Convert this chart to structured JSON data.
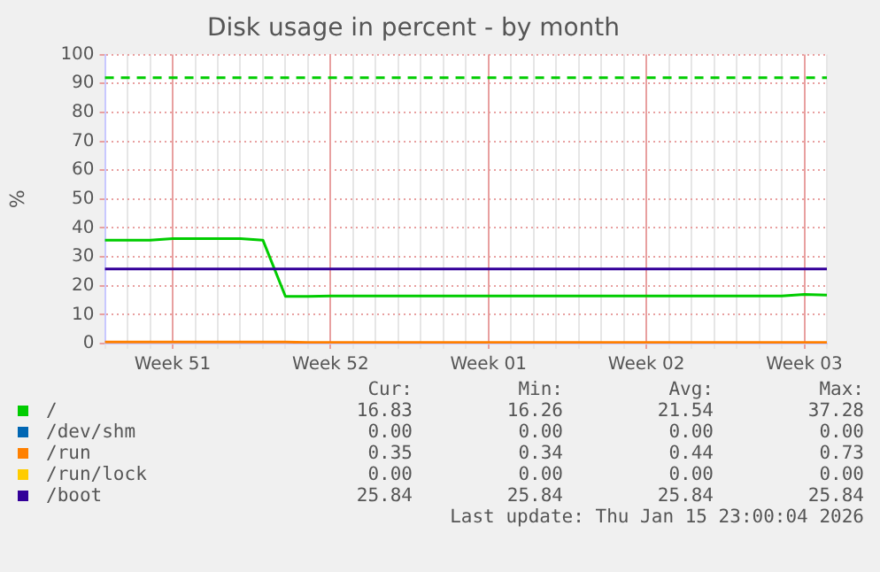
{
  "chart_data": {
    "type": "line",
    "title": "Disk usage in percent - by month",
    "ylabel": "%",
    "categories": [
      null,
      null,
      null,
      "Week 51",
      null,
      null,
      null,
      null,
      null,
      null,
      "Week 52",
      null,
      null,
      null,
      null,
      null,
      null,
      "Week 01",
      null,
      null,
      null,
      null,
      null,
      null,
      "Week 02",
      null,
      null,
      null,
      null,
      null,
      null,
      "Week 03",
      null
    ],
    "ylim": [
      0,
      100
    ],
    "yticks": [
      0,
      10,
      20,
      30,
      40,
      50,
      60,
      70,
      80,
      90,
      100
    ],
    "grid": true,
    "legend": "bottom",
    "marker": "none",
    "line_style": "solid",
    "series": [
      {
        "name": "/",
        "color": "#00cc00",
        "values": [
          35.8,
          35.8,
          35.8,
          36.3,
          36.3,
          36.3,
          36.3,
          35.8,
          16.3,
          16.3,
          16.5,
          16.5,
          16.5,
          16.5,
          16.5,
          16.5,
          16.5,
          16.5,
          16.5,
          16.5,
          16.5,
          16.5,
          16.5,
          16.5,
          16.5,
          16.5,
          16.5,
          16.5,
          16.5,
          16.5,
          16.5,
          17.0,
          16.8
        ]
      },
      {
        "name": "/dev/shm",
        "color": "#0066b3",
        "values": [
          null,
          null,
          null,
          null,
          null,
          null,
          null,
          null,
          null,
          null,
          null,
          null,
          null,
          null,
          null,
          null,
          null,
          null,
          null,
          null,
          null,
          null,
          null,
          null,
          null,
          null,
          null,
          null,
          null,
          null,
          null,
          null,
          null
        ]
      },
      {
        "name": "/run",
        "color": "#ff8000",
        "values": [
          0.5,
          0.5,
          0.5,
          0.5,
          0.5,
          0.5,
          0.5,
          0.5,
          0.5,
          0.4,
          0.4,
          0.4,
          0.4,
          0.4,
          0.4,
          0.4,
          0.4,
          0.4,
          0.4,
          0.4,
          0.4,
          0.4,
          0.4,
          0.4,
          0.4,
          0.4,
          0.4,
          0.4,
          0.4,
          0.4,
          0.4,
          0.4,
          0.4
        ]
      },
      {
        "name": "/run/lock",
        "color": "#ffcc00",
        "values": [
          null,
          null,
          null,
          null,
          null,
          null,
          null,
          null,
          null,
          null,
          null,
          null,
          null,
          null,
          null,
          null,
          null,
          null,
          null,
          null,
          null,
          null,
          null,
          null,
          null,
          null,
          null,
          null,
          null,
          null,
          null,
          null,
          null
        ]
      },
      {
        "name": "/boot",
        "color": "#330099",
        "values": [
          25.8,
          25.8,
          25.8,
          25.8,
          25.8,
          25.8,
          25.8,
          25.8,
          25.8,
          25.8,
          25.8,
          25.8,
          25.8,
          25.8,
          25.8,
          25.8,
          25.8,
          25.8,
          25.8,
          25.8,
          25.8,
          25.8,
          25.8,
          25.8,
          25.8,
          25.8,
          25.8,
          25.8,
          25.8,
          25.8,
          25.8,
          25.8,
          25.8
        ]
      }
    ],
    "ref_lines": [
      {
        "axis": "y",
        "value": 92,
        "color": "#00cc00",
        "line_style": "dashed"
      }
    ],
    "annotations": [
      "Cur:",
      "Min:",
      "Avg:",
      "Max:",
      "16.83",
      "16.26",
      "21.54",
      "37.28",
      "0.00",
      "0.00",
      "0.00",
      "0.00",
      "0.35",
      "0.34",
      "0.44",
      "0.73",
      "0.00",
      "0.00",
      "0.00",
      "0.00",
      "25.84",
      "25.84",
      "25.84",
      "25.84",
      "Last update: Thu Jan 15 23:00:04 2026"
    ]
  }
}
